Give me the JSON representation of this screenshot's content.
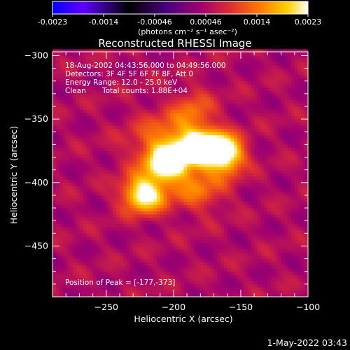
{
  "colorbar": {
    "ticks": [
      "-0.0023",
      "-0.0014",
      "-0.00046",
      "0.00046",
      "0.0014",
      "0.0023"
    ],
    "units": "(photons cm⁻² s⁻¹ asec⁻²)"
  },
  "annotations": {
    "time_range": "18-Aug-2002 04:43:56.000 to 04:49:56.000",
    "detectors": "Detectors: 3F 4F 5F 6F 7F 8F, Att 0",
    "energy": "Energy Range: 12.0 - 25.0 keV",
    "method_label": "Clean",
    "total_counts": "Total counts: 1.88E+04",
    "peak": "Position of Peak = [-177,-373]"
  },
  "footer": {
    "timestamp": "1-May-2022 03:43"
  },
  "chart_data": {
    "type": "heatmap",
    "title": "Reconstructed RHESSI Image",
    "xlabel": "Heliocentric X (arcsec)",
    "ylabel": "Heliocentric Y (arcsec)",
    "xlim": [
      -290,
      -100
    ],
    "ylim": [
      -490,
      -297
    ],
    "xticks": [
      -250,
      -200,
      -150,
      -100
    ],
    "yticks": [
      -300,
      -350,
      -400,
      -450
    ],
    "value_range": [
      -0.0023,
      0.0023
    ],
    "colormap": [
      "#0000ff",
      "#7a00ff",
      "#000000",
      "#4a0080",
      "#a00070",
      "#e03030",
      "#ff8000",
      "#ffd000",
      "#ffffff"
    ],
    "sources": [
      {
        "x": -177,
        "y": -373,
        "peak": 0.0023,
        "sx": 11,
        "sy": 9
      },
      {
        "x": -222,
        "y": -409,
        "peak": 0.002,
        "sx": 11,
        "sy": 10
      },
      {
        "x": -205,
        "y": -385,
        "peak": 0.0018,
        "sx": 10,
        "sy": 9
      },
      {
        "x": -160,
        "y": -378,
        "peak": 0.0017,
        "sx": 9,
        "sy": 10
      },
      {
        "x": -200,
        "y": -370,
        "peak": 0.0012,
        "sx": 20,
        "sy": 16
      },
      {
        "x": -182,
        "y": -405,
        "peak": 0.0008,
        "sx": 14,
        "sy": 12
      },
      {
        "x": -185,
        "y": -342,
        "peak": 0.0006,
        "sx": 10,
        "sy": 12
      }
    ],
    "background_level": 0.0005
  }
}
